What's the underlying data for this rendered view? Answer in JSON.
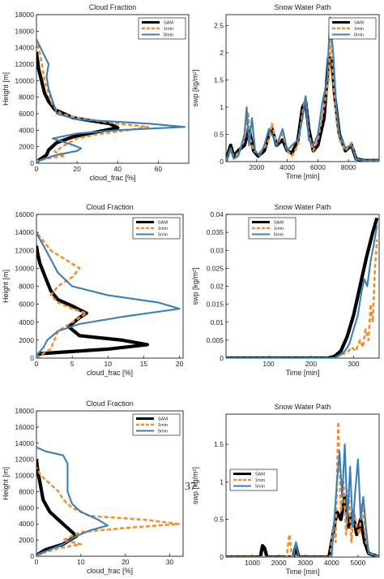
{
  "page_number": "37",
  "colors": {
    "SAM": "#000000",
    "1min": "#f28e2b",
    "5min": "#3a7fb8"
  },
  "chart_data": [
    {
      "type": "line",
      "title": "Cloud Fraction",
      "xlabel": "cloud_frac [%]",
      "ylabel": "Height [m]",
      "xlim": [
        0,
        75
      ],
      "ylim": [
        0,
        18000
      ],
      "xticks": [
        "0",
        "20",
        "40",
        "60"
      ],
      "xtick_vals": [
        0,
        20,
        40,
        60
      ],
      "yticks": [
        "0",
        "2000",
        "4000",
        "6000",
        "8000",
        "10000",
        "12000",
        "14000",
        "16000",
        "18000"
      ],
      "ytick_vals": [
        0,
        2000,
        4000,
        6000,
        8000,
        10000,
        12000,
        14000,
        16000,
        18000
      ],
      "legend": [
        "SAM",
        "1min",
        "5min"
      ],
      "legend_position": "top-right",
      "series": [
        {
          "name": "SAM",
          "x": [
            0,
            0.2,
            2,
            5,
            6,
            10,
            18,
            28,
            40,
            36,
            18,
            9,
            6,
            4,
            3,
            2,
            1,
            0.5,
            0.2,
            0
          ],
          "y": [
            0,
            200,
            500,
            1000,
            1600,
            2500,
            3200,
            3700,
            4300,
            4800,
            5500,
            6500,
            7500,
            8500,
            9500,
            10500,
            11500,
            12500,
            13000,
            13500
          ]
        },
        {
          "name": "1min",
          "x": [
            0,
            0.5,
            6,
            14,
            9,
            14,
            20,
            30,
            45,
            55,
            40,
            22,
            12,
            8,
            6,
            4,
            3,
            2,
            1,
            0.5,
            0
          ],
          "y": [
            0,
            300,
            600,
            900,
            1400,
            2200,
            3000,
            3500,
            4000,
            4400,
            4800,
            5400,
            6000,
            7000,
            8500,
            10000,
            11500,
            13000,
            14000,
            14500,
            15000
          ]
        },
        {
          "name": "5min",
          "x": [
            0,
            2,
            10,
            20,
            22,
            18,
            8,
            20,
            40,
            73,
            55,
            20,
            10,
            8,
            6,
            5,
            6,
            4,
            2,
            0
          ],
          "y": [
            0,
            400,
            1000,
            1500,
            1800,
            2200,
            3000,
            3600,
            4000,
            4400,
            4800,
            5300,
            6000,
            7500,
            9000,
            10500,
            12000,
            13000,
            14000,
            15000
          ]
        }
      ]
    },
    {
      "type": "line",
      "title": "Snow Water Path",
      "xlabel": "Time [min]",
      "ylabel": "swp [kg/m²]",
      "xlim": [
        0,
        10000
      ],
      "ylim": [
        0,
        2.7
      ],
      "xticks": [
        "2000",
        "4000",
        "6000",
        "8000"
      ],
      "xtick_vals": [
        2000,
        4000,
        6000,
        8000
      ],
      "yticks": [
        "0",
        "0.5",
        "1",
        "1.5",
        "2",
        "2.5"
      ],
      "ytick_vals": [
        0,
        0.5,
        1,
        1.5,
        2,
        2.5
      ],
      "legend": [
        "SAM",
        "1min",
        "5min"
      ],
      "legend_position": "top-right",
      "series": [
        {
          "name": "SAM",
          "x": [
            0,
            300,
            500,
            800,
            1200,
            1500,
            1800,
            2100,
            2500,
            2800,
            3000,
            3300,
            3700,
            4000,
            4300,
            4700,
            5000,
            5200,
            5400,
            5700,
            6000,
            6400,
            6700,
            6900,
            7100,
            7400,
            7800,
            8200,
            8500,
            9000,
            10000
          ],
          "y": [
            0.02,
            0.3,
            0.1,
            0.2,
            0.3,
            0.6,
            0.2,
            0.1,
            0.2,
            0.5,
            0.6,
            0.3,
            0.4,
            0.2,
            0.15,
            0.4,
            1.0,
            1.1,
            0.6,
            0.2,
            0.3,
            0.8,
            1.9,
            1.9,
            1.2,
            0.5,
            0.2,
            0.3,
            0.05,
            0.02,
            0.02
          ]
        },
        {
          "name": "1min",
          "x": [
            0,
            300,
            500,
            800,
            1200,
            1450,
            1600,
            1800,
            2100,
            2500,
            2800,
            3000,
            3300,
            3700,
            4000,
            4300,
            4700,
            5000,
            5200,
            5400,
            5700,
            6000,
            6400,
            6700,
            6850,
            7000,
            7200,
            7400,
            7800,
            8200,
            8500,
            9000,
            10000
          ],
          "y": [
            0.02,
            0.2,
            0.1,
            0.15,
            0.4,
            0.9,
            0.4,
            0.2,
            0.15,
            0.25,
            0.4,
            0.7,
            0.3,
            0.5,
            0.2,
            0.1,
            0.3,
            0.9,
            1.2,
            0.5,
            0.2,
            0.4,
            1.0,
            1.5,
            2.3,
            1.5,
            0.8,
            0.4,
            0.2,
            0.35,
            0.05,
            0.02,
            0.02
          ]
        },
        {
          "name": "5min",
          "x": [
            0,
            300,
            500,
            800,
            1200,
            1350,
            1500,
            1700,
            1900,
            2200,
            2500,
            2800,
            3000,
            3300,
            3700,
            4000,
            4300,
            4700,
            5000,
            5200,
            5400,
            5700,
            6000,
            6300,
            6600,
            6800,
            7000,
            7200,
            7400,
            7800,
            8200,
            8500,
            9000,
            10000
          ],
          "y": [
            0.02,
            0.25,
            0.05,
            0.1,
            0.5,
            1.0,
            0.3,
            0.8,
            0.2,
            0.1,
            0.3,
            0.6,
            0.5,
            0.3,
            0.6,
            0.2,
            0.3,
            0.4,
            0.8,
            1.2,
            0.4,
            0.3,
            0.5,
            1.1,
            1.5,
            2.65,
            2.0,
            1.0,
            0.5,
            0.25,
            0.3,
            0.05,
            0.02,
            0.02
          ]
        }
      ]
    },
    {
      "type": "line",
      "title": "Cloud Fraction",
      "xlabel": "cloud_frac [%]",
      "ylabel": "Height [m]",
      "xlim": [
        0,
        20.5
      ],
      "ylim": [
        0,
        16000
      ],
      "xticks": [
        "0",
        "5",
        "10",
        "15",
        "20"
      ],
      "xtick_vals": [
        0,
        5,
        10,
        15,
        20
      ],
      "yticks": [
        "0",
        "2000",
        "4000",
        "6000",
        "8000",
        "10000",
        "12000",
        "14000",
        "16000"
      ],
      "ytick_vals": [
        0,
        2000,
        4000,
        6000,
        8000,
        10000,
        12000,
        14000,
        16000
      ],
      "legend": [
        "SAM",
        "1min",
        "5min"
      ],
      "legend_position": "top-right",
      "series": [
        {
          "name": "SAM",
          "x": [
            0,
            0.5,
            10,
            15.5,
            12,
            6,
            4.5,
            6,
            7,
            5,
            3,
            2,
            1.5,
            1,
            0.5,
            0.2,
            0
          ],
          "y": [
            0,
            500,
            1000,
            1500,
            2000,
            2500,
            3500,
            4500,
            5000,
            5800,
            6500,
            7500,
            8500,
            9500,
            10500,
            11500,
            12500
          ]
        },
        {
          "name": "1min",
          "x": [
            0,
            0.5,
            2,
            2.5,
            3,
            5,
            7,
            5,
            3,
            2,
            3,
            5,
            6,
            4,
            2,
            1,
            0.5,
            0
          ],
          "y": [
            0,
            300,
            1000,
            2000,
            3000,
            4000,
            5000,
            5500,
            6200,
            7000,
            8000,
            9000,
            10000,
            11000,
            12000,
            13000,
            13500,
            14000
          ]
        },
        {
          "name": "5min",
          "x": [
            0,
            0.2,
            1.0,
            1.5,
            3,
            6,
            12,
            20,
            17,
            10,
            5,
            3,
            2,
            1,
            0.3,
            0
          ],
          "y": [
            0,
            500,
            1200,
            2000,
            3000,
            3800,
            4600,
            5500,
            6200,
            7000,
            8000,
            9500,
            11000,
            12500,
            13500,
            14000
          ]
        }
      ]
    },
    {
      "type": "line",
      "title": "Snow Water Path",
      "xlabel": "Time [min]",
      "ylabel": "swp [kg/m²]",
      "xlim": [
        0,
        360
      ],
      "ylim": [
        0,
        0.04
      ],
      "xticks": [
        "100",
        "200",
        "300"
      ],
      "xtick_vals": [
        100,
        200,
        300
      ],
      "yticks": [
        "0",
        "0.005",
        "0.01",
        "0.015",
        "0.02",
        "0.025",
        "0.03",
        "0.035",
        "0.04"
      ],
      "ytick_vals": [
        0,
        0.005,
        0.01,
        0.015,
        0.02,
        0.025,
        0.03,
        0.035,
        0.04
      ],
      "legend": [
        "SAM",
        "1min",
        "5min"
      ],
      "legend_position": "top-left",
      "series": [
        {
          "name": "SAM",
          "x": [
            0,
            240,
            255,
            270,
            285,
            300,
            315,
            330,
            345,
            355
          ],
          "y": [
            0,
            0,
            0.0005,
            0.002,
            0.006,
            0.012,
            0.02,
            0.028,
            0.035,
            0.039
          ]
        },
        {
          "name": "1min",
          "x": [
            0,
            255,
            270,
            285,
            295,
            305,
            315,
            322,
            328,
            335,
            340,
            345,
            350,
            355
          ],
          "y": [
            0,
            0,
            0.001,
            0.0015,
            0.003,
            0.002,
            0.005,
            0.003,
            0.008,
            0.005,
            0.015,
            0.01,
            0.025,
            0.033
          ]
        },
        {
          "name": "5min",
          "x": [
            0,
            255,
            270,
            280,
            290,
            300,
            310,
            318,
            325,
            332,
            340,
            348,
            355
          ],
          "y": [
            0,
            0,
            0.001,
            0.002,
            0.004,
            0.008,
            0.012,
            0.018,
            0.022,
            0.02,
            0.027,
            0.032,
            0.037
          ]
        }
      ]
    },
    {
      "type": "line",
      "title": "Cloud Fraction",
      "xlabel": "cloud_frac [%]",
      "ylabel": "Height [m]",
      "xlim": [
        0,
        33
      ],
      "ylim": [
        0,
        18000
      ],
      "xticks": [
        "0",
        "10",
        "20",
        "30"
      ],
      "xtick_vals": [
        0,
        10,
        20,
        30
      ],
      "yticks": [
        "0",
        "2000",
        "4000",
        "6000",
        "8000",
        "10000",
        "12000",
        "14000",
        "16000",
        "18000"
      ],
      "ytick_vals": [
        0,
        2000,
        4000,
        6000,
        8000,
        10000,
        12000,
        14000,
        16000,
        18000
      ],
      "legend": [
        "SAM",
        "1min",
        "5min"
      ],
      "legend_position": "top-right",
      "series": [
        {
          "name": "SAM",
          "x": [
            0,
            0.5,
            2,
            6,
            9,
            7,
            5,
            3,
            1.5,
            1,
            0.5,
            0.2,
            0
          ],
          "y": [
            0,
            300,
            800,
            1500,
            2500,
            3500,
            4500,
            5500,
            7000,
            8500,
            10000,
            11000,
            12000
          ]
        },
        {
          "name": "1min",
          "x": [
            0,
            2,
            5,
            10,
            6,
            10,
            20,
            32,
            25,
            12,
            8,
            6,
            5,
            3,
            1,
            0
          ],
          "y": [
            0,
            500,
            1000,
            1500,
            2000,
            3000,
            3500,
            4000,
            4500,
            5000,
            6000,
            7000,
            8000,
            9000,
            10000,
            11000
          ]
        },
        {
          "name": "5min",
          "x": [
            0,
            0.5,
            3,
            6,
            9,
            12,
            16,
            14,
            10,
            8,
            7,
            7,
            7,
            6,
            2,
            0
          ],
          "y": [
            0,
            300,
            800,
            1500,
            2500,
            3200,
            3800,
            4500,
            5500,
            6500,
            8000,
            10000,
            11500,
            12500,
            13000,
            13500
          ]
        }
      ]
    },
    {
      "type": "line",
      "title": "Snow Water Path",
      "xlabel": "Time [min]",
      "ylabel": "swp [kg/m²]",
      "xlim": [
        0,
        5800
      ],
      "ylim": [
        0,
        1.9
      ],
      "xticks": [
        "1000",
        "2000",
        "3000",
        "4000",
        "5000"
      ],
      "xtick_vals": [
        1000,
        2000,
        3000,
        4000,
        5000
      ],
      "yticks": [
        "0",
        "0.5",
        "1",
        "1.5"
      ],
      "ytick_vals": [
        0,
        0.5,
        1,
        1.5
      ],
      "legend": [
        "SAM",
        "1min",
        "5min"
      ],
      "legend_position": "center-left",
      "series": [
        {
          "name": "SAM",
          "x": [
            0,
            1300,
            1380,
            1460,
            1550,
            2550,
            2650,
            2750,
            3900,
            4050,
            4200,
            4350,
            4500,
            4650,
            4800,
            4950,
            5100,
            5250,
            5400,
            5800
          ],
          "y": [
            0,
            0,
            0.15,
            0.12,
            0,
            0,
            0.15,
            0,
            0,
            0.3,
            0.6,
            0.5,
            0.8,
            0.4,
            0.6,
            0.3,
            0.5,
            0.2,
            0.05,
            0
          ]
        },
        {
          "name": "1min",
          "x": [
            0,
            2300,
            2400,
            2500,
            3950,
            4050,
            4150,
            4250,
            4350,
            4450,
            4550,
            4650,
            4750,
            4850,
            4950,
            5050,
            5150,
            5300,
            5450,
            5800
          ],
          "y": [
            0,
            0,
            0.3,
            0,
            0,
            0.4,
            0.2,
            1.8,
            0.6,
            1.0,
            0.3,
            0.9,
            0.2,
            0.6,
            0.4,
            0.3,
            0.7,
            0.2,
            0.05,
            0
          ]
        },
        {
          "name": "5min",
          "x": [
            0,
            2550,
            2650,
            2750,
            4000,
            4100,
            4200,
            4300,
            4400,
            4500,
            4600,
            4700,
            4800,
            4900,
            5000,
            5100,
            5200,
            5300,
            5400,
            5800
          ],
          "y": [
            0,
            0,
            0.2,
            0,
            0,
            0.5,
            1.0,
            1.4,
            0.8,
            1.5,
            0.5,
            1.2,
            0.4,
            0.9,
            1.3,
            0.5,
            0.8,
            0.4,
            0.05,
            0
          ]
        }
      ]
    }
  ]
}
